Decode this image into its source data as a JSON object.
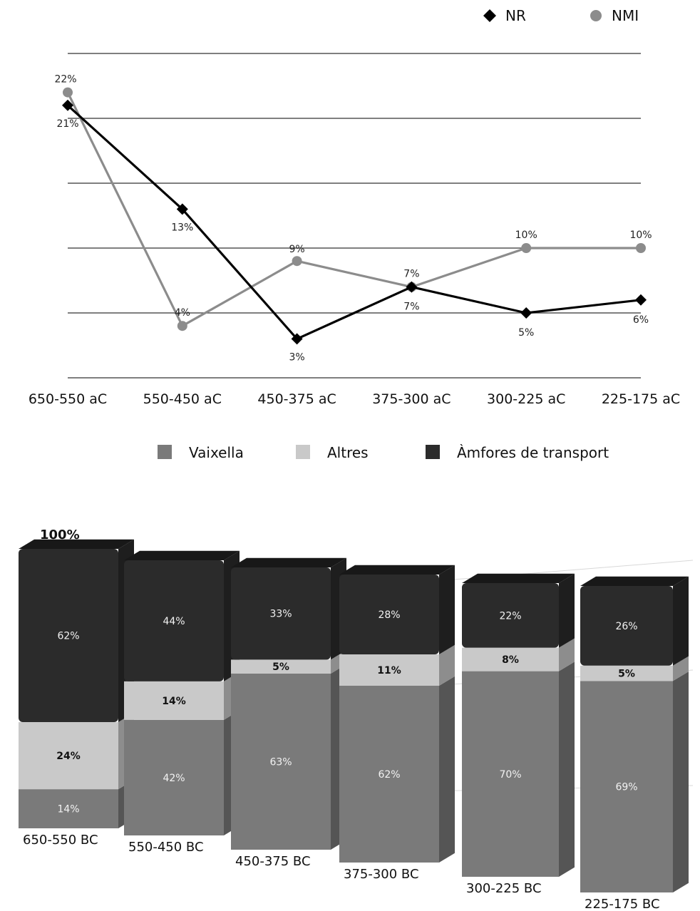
{
  "chart_data": [
    {
      "type": "line",
      "categories": [
        "650-550 aC",
        "550-450 aC",
        "450-375 aC",
        "375-300 aC",
        "300-225 aC",
        "225-175 aC"
      ],
      "series": [
        {
          "name": "NR",
          "values": [
            21,
            13,
            3,
            7,
            5,
            6
          ],
          "labels": [
            "21%",
            "13%",
            "3%",
            "7%",
            "5%",
            "6%"
          ],
          "color": "#000000",
          "marker": "diamond"
        },
        {
          "name": "NMI",
          "values": [
            22,
            4,
            9,
            7,
            10,
            10
          ],
          "labels": [
            "22%",
            "4%",
            "9%",
            "7%",
            "10%",
            "10%"
          ],
          "color": "#8c8c8c",
          "marker": "circle"
        }
      ],
      "ylim": [
        0,
        25
      ],
      "grid": true,
      "legend_position": "top-right"
    },
    {
      "type": "bar",
      "stacked": true,
      "categories": [
        "650-550 BC",
        "550-450 BC",
        "450-375 BC",
        "375-300 BC",
        "300-225 BC",
        "225-175 BC"
      ],
      "series": [
        {
          "name": "Vaixella",
          "values": [
            14,
            42,
            63,
            62,
            70,
            69
          ],
          "labels": [
            "14%",
            "42%",
            "63%",
            "62%",
            "70%",
            "69%"
          ],
          "color": "#7a7a7a"
        },
        {
          "name": "Altres",
          "values": [
            24,
            14,
            5,
            11,
            8,
            5
          ],
          "labels": [
            "24%",
            "14%",
            "5%",
            "11%",
            "8%",
            "5%"
          ],
          "color": "#c9c9c9"
        },
        {
          "name": "Àmfores de transport",
          "values": [
            62,
            44,
            33,
            28,
            22,
            26
          ],
          "labels": [
            "62%",
            "44%",
            "33%",
            "28%",
            "22%",
            "26%"
          ],
          "color": "#2b2b2b"
        }
      ],
      "annotation": "100%",
      "ylim": [
        0,
        100
      ],
      "legend_position": "top"
    }
  ]
}
